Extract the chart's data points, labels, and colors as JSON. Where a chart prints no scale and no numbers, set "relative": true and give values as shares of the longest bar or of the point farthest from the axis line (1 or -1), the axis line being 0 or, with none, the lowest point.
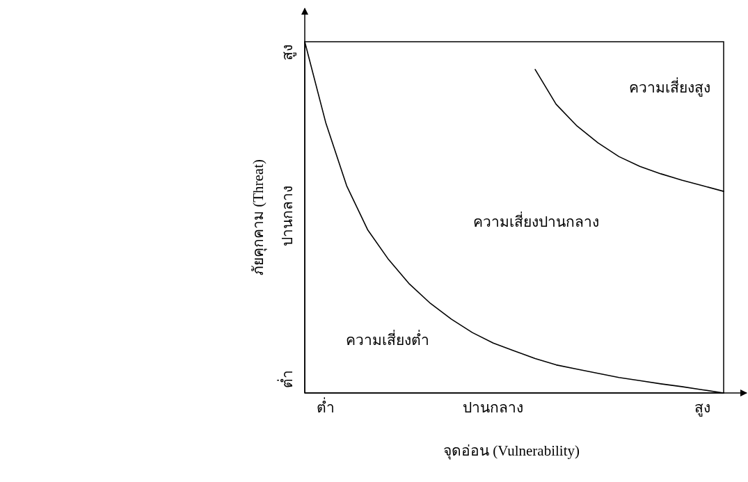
{
  "chart_data": {
    "type": "line",
    "relative": true,
    "xlabel": "จุดอ่อน (Vulnerability)",
    "ylabel": "ภัยคุกคาม (Threat)",
    "categories": [
      null,
      "ต่ำ",
      null,
      null,
      null,
      null,
      null,
      null,
      null,
      "ปานกลาง",
      null,
      null,
      null,
      null,
      null,
      null,
      null,
      null,
      null,
      "สูง",
      null
    ],
    "series": [
      {
        "color": "#000000",
        "values": [
          1,
          0.77,
          0.59,
          0.465,
          0.38,
          0.31,
          0.255,
          0.21,
          0.172,
          0.142,
          0.12,
          0.098,
          0.08,
          0.068,
          0.056,
          0.044,
          0.035,
          0.026,
          0.018,
          0.009,
          0
        ]
      },
      {
        "color": "#000000",
        "values": [
          null,
          null,
          null,
          null,
          null,
          null,
          null,
          null,
          null,
          null,
          null,
          0.921,
          0.822,
          0.76,
          0.712,
          0.673,
          0.645,
          0.624,
          0.606,
          0.59,
          0.574
        ]
      }
    ],
    "annotations": [
      "ความเสี่ยงสูง",
      "ความเสี่ยงปานกลาง",
      "ความเสี่ยงต่ำ",
      "สูง",
      "ปานกลาง",
      "ต่ำ"
    ]
  }
}
